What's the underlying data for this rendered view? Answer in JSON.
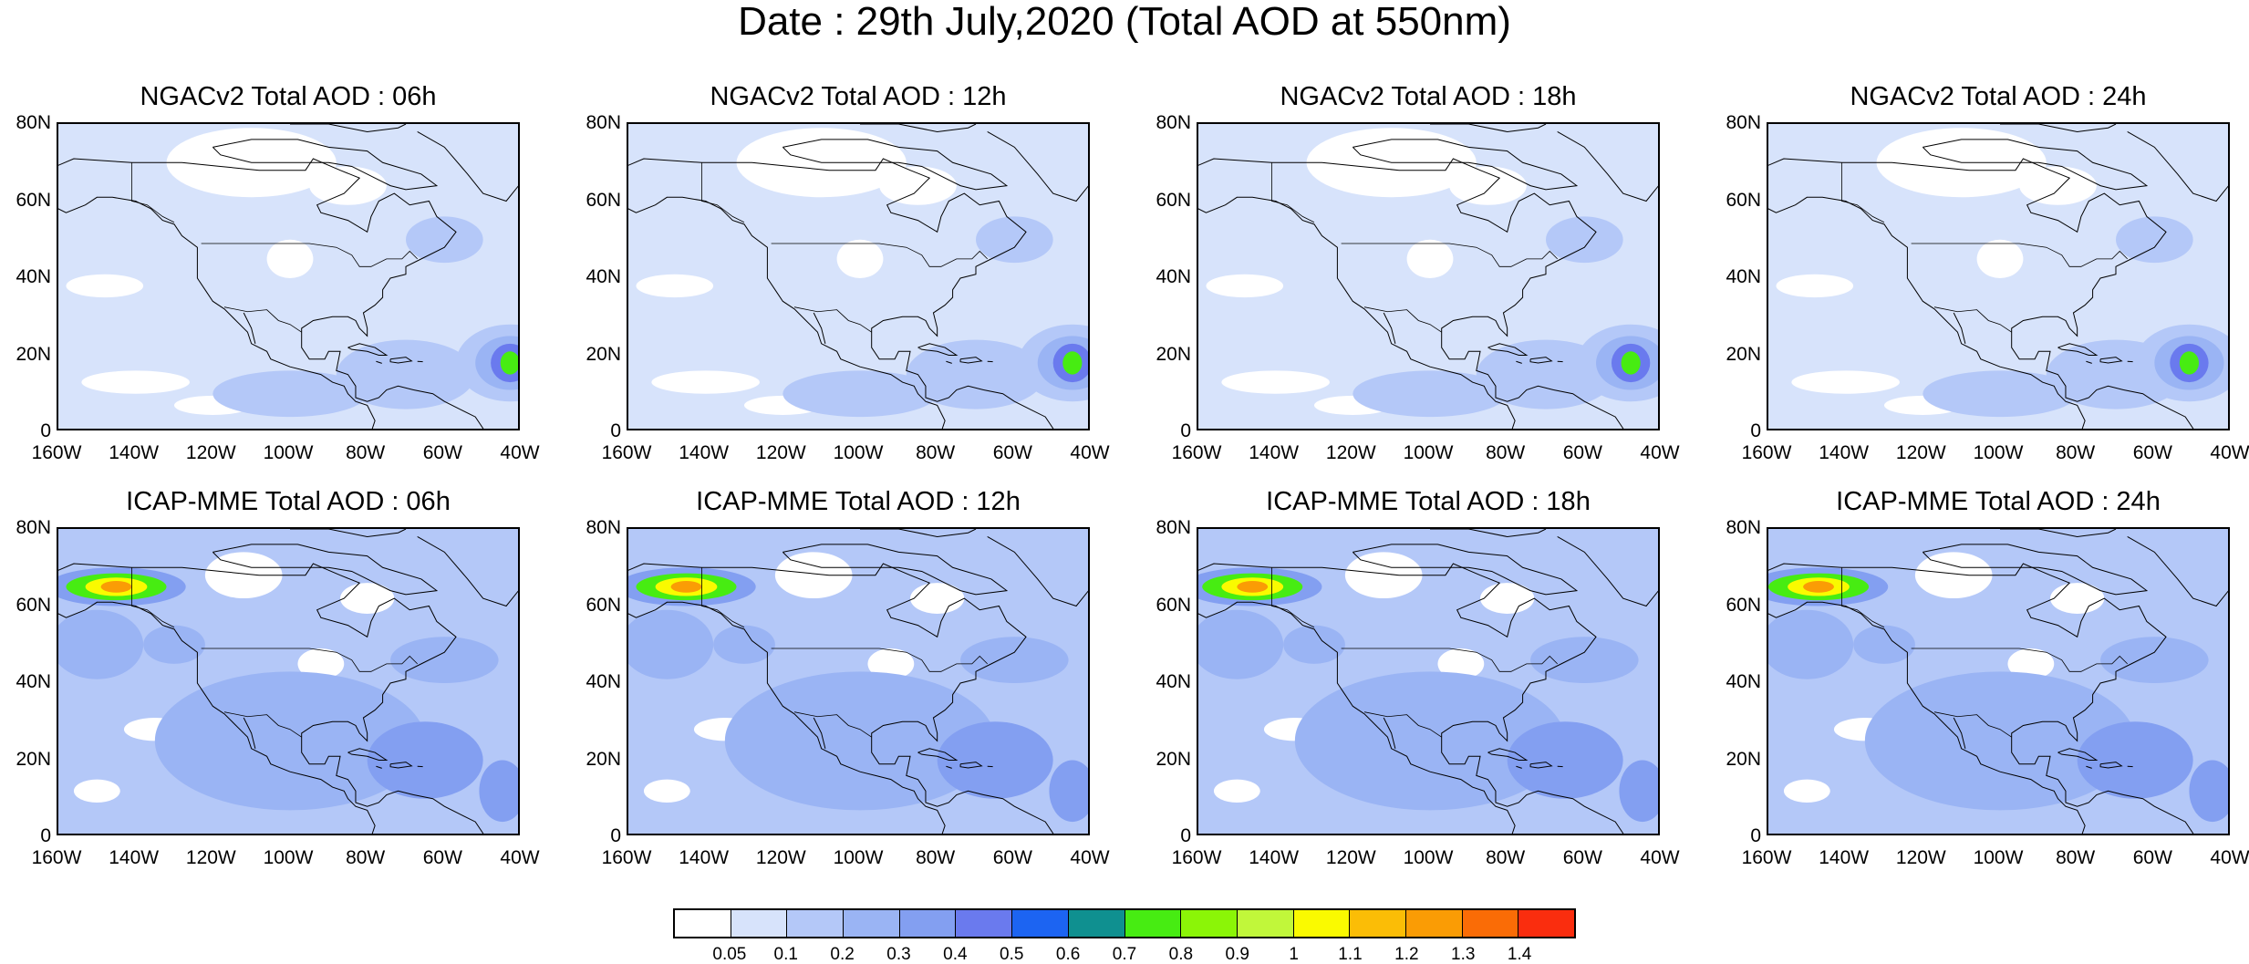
{
  "title": "Date : 29th July,2020 (Total AOD at 550nm)",
  "panels": [
    {
      "title": "NGACv2 Total AOD : 06h",
      "model": "NGACv2",
      "hour": "06h"
    },
    {
      "title": "NGACv2 Total AOD : 12h",
      "model": "NGACv2",
      "hour": "12h"
    },
    {
      "title": "NGACv2 Total AOD : 18h",
      "model": "NGACv2",
      "hour": "18h"
    },
    {
      "title": "NGACv2 Total AOD : 24h",
      "model": "NGACv2",
      "hour": "24h"
    },
    {
      "title": "ICAP-MME Total AOD : 06h",
      "model": "ICAP-MME",
      "hour": "06h"
    },
    {
      "title": "ICAP-MME Total AOD : 12h",
      "model": "ICAP-MME",
      "hour": "12h"
    },
    {
      "title": "ICAP-MME Total AOD : 18h",
      "model": "ICAP-MME",
      "hour": "18h"
    },
    {
      "title": "ICAP-MME Total AOD : 24h",
      "model": "ICAP-MME",
      "hour": "24h"
    }
  ],
  "lat_ticks": [
    "80N",
    "60N",
    "40N",
    "20N",
    "0"
  ],
  "lon_ticks": [
    "160W",
    "140W",
    "120W",
    "100W",
    "80W",
    "60W",
    "40W"
  ],
  "colorbar": {
    "levels": [
      "0.05",
      "0.1",
      "0.2",
      "0.3",
      "0.4",
      "0.5",
      "0.6",
      "0.7",
      "0.8",
      "0.9",
      "1",
      "1.1",
      "1.2",
      "1.3",
      "1.4"
    ],
    "colors": [
      "#ffffff",
      "#d7e3fb",
      "#b4c8f8",
      "#9ab4f4",
      "#839ff1",
      "#6a7aee",
      "#1c64f2",
      "#0f9090",
      "#47ec12",
      "#8bf507",
      "#c1f73a",
      "#fafa00",
      "#fbbd06",
      "#fa9c05",
      "#fa6c06",
      "#fa2d0e"
    ]
  }
}
